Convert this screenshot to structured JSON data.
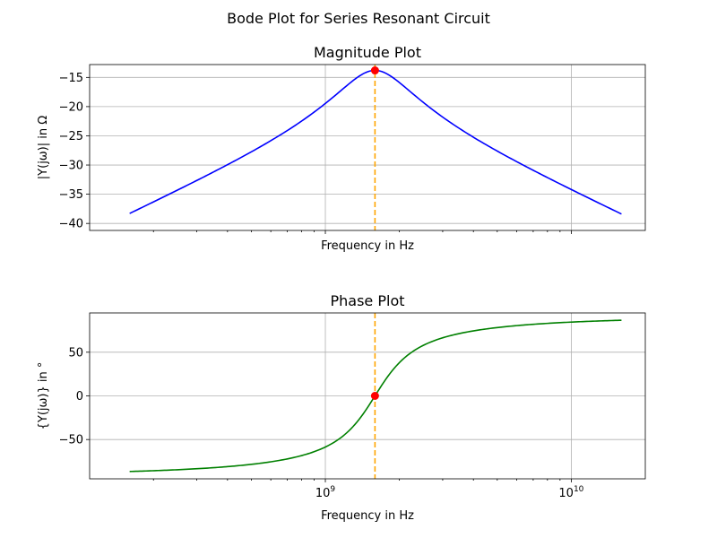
{
  "figure": {
    "title": "Bode Plot for Series Resonant Circuit"
  },
  "chart_data": [
    {
      "type": "line",
      "title": "Magnitude Plot",
      "xlabel": "Frequency in Hz",
      "ylabel": "|Y(jω)| in Ω",
      "xscale": "log",
      "xlim": [
        110000000,
        20000000000
      ],
      "ylim": [
        -41.2,
        -12.8
      ],
      "grid": true,
      "x_tick_labels_visible": false,
      "yticks": [
        -40,
        -35,
        -30,
        -25,
        -20,
        -15
      ],
      "ytick_labels": [
        "−40",
        "−35",
        "−30",
        "−25",
        "−20",
        "−15"
      ],
      "series": [
        {
          "color": "#0000ff",
          "model": "magnitude",
          "x": [
            160000000,
            300000000,
            500000000,
            700000000,
            900000000,
            1000000000,
            1200000000,
            1400000000,
            1520000000,
            1591500000,
            1660000000,
            1800000000,
            2200000000,
            3000000000,
            5000000000,
            8000000000,
            10000000000,
            16000000000
          ],
          "values": [
            -40.0,
            -34.5,
            -30.0,
            -26.7,
            -22.8,
            -20.5,
            -16.9,
            -14.5,
            -13.9,
            -13.8,
            -14.1,
            -15.0,
            -19.5,
            -24.8,
            -29.9,
            -33.8,
            -35.7,
            -40.0
          ]
        }
      ],
      "marker": {
        "x": 1591500000,
        "y": -13.8,
        "color": "#ff0000"
      },
      "vline": {
        "x": 1591500000,
        "color": "#ffa500",
        "style": "dashed"
      }
    },
    {
      "type": "line",
      "title": "Phase Plot",
      "xlabel": "Frequency in Hz",
      "ylabel": "{Y(jω)} in °",
      "xscale": "log",
      "xlim": [
        110000000,
        20000000000
      ],
      "ylim": [
        -95,
        95
      ],
      "grid": true,
      "x_tick_labels_visible": true,
      "xticks": [
        1000000000,
        10000000000
      ],
      "xtick_bases": [
        "10",
        "10"
      ],
      "xtick_exponents": [
        "9",
        "10"
      ],
      "yticks": [
        -50,
        0,
        50
      ],
      "ytick_labels": [
        "−50",
        "0",
        "50"
      ],
      "series": [
        {
          "color": "#008000",
          "model": "phase",
          "x": [
            160000000,
            400000000,
            800000000,
            1200000000,
            1591500000,
            2000000000,
            3000000000,
            5000000000,
            10000000000,
            16000000000
          ],
          "values": [
            -86.4,
            -81.5,
            -71.0,
            -49.0,
            0.0,
            46.0,
            71.0,
            80.0,
            84.5,
            86.4
          ]
        }
      ],
      "marker": {
        "x": 1591500000,
        "y": 0,
        "color": "#ff0000"
      },
      "vline": {
        "x": 1591500000,
        "color": "#ffa500",
        "style": "dashed"
      }
    }
  ]
}
